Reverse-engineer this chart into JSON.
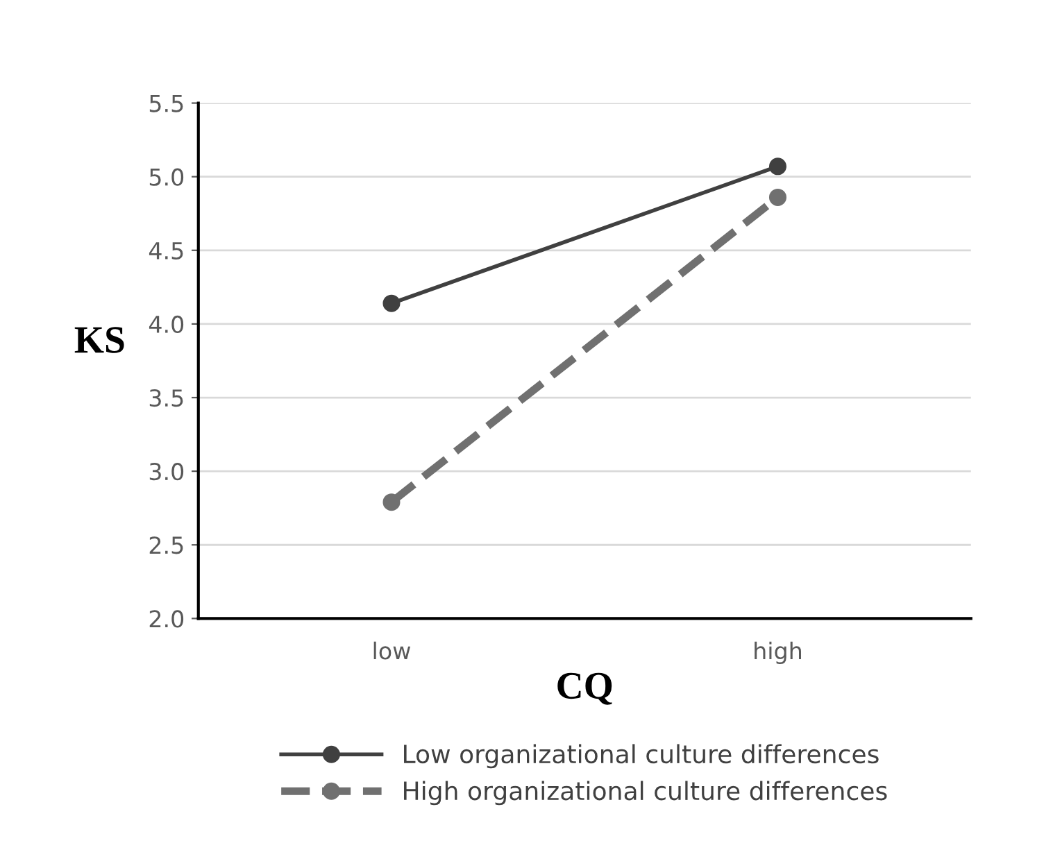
{
  "chart_data": {
    "type": "line",
    "xlabel": "CQ",
    "ylabel": "KS",
    "categories": [
      "low",
      "high"
    ],
    "series": [
      {
        "name": "Low organizational culture differences",
        "color": "#404040",
        "values": [
          4.14,
          5.07
        ],
        "line_style": "solid"
      },
      {
        "name": "High organizational culture differences",
        "color": "#707070",
        "values": [
          2.79,
          4.86
        ],
        "line_style": "dashed"
      }
    ],
    "ylim": [
      2.0,
      5.5
    ],
    "yticks": [
      {
        "value": 2.0,
        "label": "2.0"
      },
      {
        "value": 2.5,
        "label": "2.5"
      },
      {
        "value": 3.0,
        "label": "3.0"
      },
      {
        "value": 3.5,
        "label": "3.5"
      },
      {
        "value": 4.0,
        "label": "4.0"
      },
      {
        "value": 4.5,
        "label": "4.5"
      },
      {
        "value": 5.0,
        "label": "5.0"
      },
      {
        "value": 5.5,
        "label": "5.5"
      }
    ],
    "grid": "y",
    "legend": "bottom",
    "marker": "circle"
  }
}
